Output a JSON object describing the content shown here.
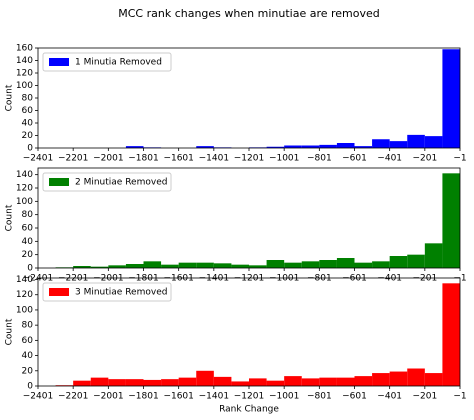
{
  "title": "MCC rank changes when minutiae are removed",
  "chart_data": [
    {
      "type": "histogram",
      "ylabel": "Count",
      "bins": [
        -2401,
        -2301,
        -2201,
        -2101,
        -2001,
        -1901,
        -1801,
        -1701,
        -1601,
        -1501,
        -1401,
        -1301,
        -1201,
        -1101,
        -1001,
        -901,
        -801,
        -701,
        -601,
        -501,
        -401,
        -301,
        -201,
        -101,
        -1
      ],
      "series": [
        {
          "name": "1 Minutia Removed",
          "color": "#0000ff",
          "values": [
            0,
            0,
            0,
            0,
            0,
            3,
            1,
            0,
            0,
            3,
            1,
            0,
            1,
            2,
            4,
            4,
            5,
            8,
            3,
            14,
            11,
            21,
            19,
            158
          ]
        }
      ],
      "xlim": [
        -2401,
        -1
      ],
      "xticks": [
        {
          "value": -2401,
          "label": "−2401"
        },
        {
          "value": -2201,
          "label": "−2201"
        },
        {
          "value": -2001,
          "label": "−2001"
        },
        {
          "value": -1801,
          "label": "−1801"
        },
        {
          "value": -1601,
          "label": "−1601"
        },
        {
          "value": -1401,
          "label": "−1401"
        },
        {
          "value": -1201,
          "label": "−1201"
        },
        {
          "value": -1001,
          "label": "−1001"
        },
        {
          "value": -801,
          "label": "−801"
        },
        {
          "value": -601,
          "label": "−601"
        },
        {
          "value": -401,
          "label": "−401"
        },
        {
          "value": -201,
          "label": "−201"
        },
        {
          "value": -1,
          "label": "−1"
        }
      ],
      "ylim": [
        0,
        160
      ],
      "yticks": [
        0,
        20,
        40,
        60,
        80,
        100,
        120,
        140,
        160
      ],
      "legend": "upper left"
    },
    {
      "type": "histogram",
      "ylabel": "Count",
      "bins": [
        -2401,
        -2301,
        -2201,
        -2101,
        -2001,
        -1901,
        -1801,
        -1701,
        -1601,
        -1501,
        -1401,
        -1301,
        -1201,
        -1101,
        -1001,
        -901,
        -801,
        -701,
        -601,
        -501,
        -401,
        -301,
        -201,
        -101,
        -1
      ],
      "series": [
        {
          "name": "2 Minutiae Removed",
          "color": "#008000",
          "values": [
            0,
            1,
            3,
            2,
            4,
            6,
            10,
            5,
            8,
            8,
            7,
            5,
            4,
            12,
            8,
            10,
            12,
            15,
            8,
            10,
            18,
            20,
            37,
            142
          ]
        }
      ],
      "xlim": [
        -2401,
        -1
      ],
      "xticks": [
        {
          "value": -2401,
          "label": "−2401"
        },
        {
          "value": -2201,
          "label": "−2201"
        },
        {
          "value": -2001,
          "label": "−2001"
        },
        {
          "value": -1801,
          "label": "−1801"
        },
        {
          "value": -1601,
          "label": "−1601"
        },
        {
          "value": -1401,
          "label": "−1401"
        },
        {
          "value": -1201,
          "label": "−1201"
        },
        {
          "value": -1001,
          "label": "−1001"
        },
        {
          "value": -801,
          "label": "−801"
        },
        {
          "value": -601,
          "label": "−601"
        },
        {
          "value": -401,
          "label": "−401"
        },
        {
          "value": -201,
          "label": "−201"
        },
        {
          "value": -1,
          "label": "−1"
        }
      ],
      "ylim": [
        0,
        150
      ],
      "yticks": [
        0,
        20,
        40,
        60,
        80,
        100,
        120,
        140
      ],
      "legend": "upper left"
    },
    {
      "type": "histogram",
      "ylabel": "Count",
      "xlabel": "Rank Change",
      "bins": [
        -2401,
        -2301,
        -2201,
        -2101,
        -2001,
        -1901,
        -1801,
        -1701,
        -1601,
        -1501,
        -1401,
        -1301,
        -1201,
        -1101,
        -1001,
        -901,
        -801,
        -701,
        -601,
        -501,
        -401,
        -301,
        -201,
        -101,
        -1
      ],
      "series": [
        {
          "name": "3 Minutiae Removed",
          "color": "#ff0000",
          "values": [
            0,
            1,
            7,
            11,
            9,
            9,
            8,
            9,
            11,
            20,
            12,
            6,
            10,
            7,
            13,
            10,
            11,
            11,
            13,
            17,
            19,
            23,
            17,
            135
          ]
        }
      ],
      "xlim": [
        -2401,
        -1
      ],
      "xticks": [
        {
          "value": -2401,
          "label": "−2401"
        },
        {
          "value": -2201,
          "label": "−2201"
        },
        {
          "value": -2001,
          "label": "−2001"
        },
        {
          "value": -1801,
          "label": "−1801"
        },
        {
          "value": -1601,
          "label": "−1601"
        },
        {
          "value": -1401,
          "label": "−1401"
        },
        {
          "value": -1201,
          "label": "−1201"
        },
        {
          "value": -1001,
          "label": "−1001"
        },
        {
          "value": -801,
          "label": "−801"
        },
        {
          "value": -601,
          "label": "−601"
        },
        {
          "value": -401,
          "label": "−401"
        },
        {
          "value": -201,
          "label": "−201"
        },
        {
          "value": -1,
          "label": "−1"
        }
      ],
      "ylim": [
        0,
        142
      ],
      "yticks": [
        0,
        20,
        40,
        60,
        80,
        100,
        120,
        140
      ],
      "legend": "upper left"
    }
  ]
}
